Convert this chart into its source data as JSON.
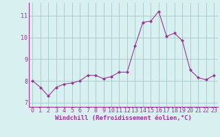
{
  "x": [
    0,
    1,
    2,
    3,
    4,
    5,
    6,
    7,
    8,
    9,
    10,
    11,
    12,
    13,
    14,
    15,
    16,
    17,
    18,
    19,
    20,
    21,
    22,
    23
  ],
  "y": [
    8.0,
    7.7,
    7.3,
    7.7,
    7.85,
    7.9,
    8.0,
    8.25,
    8.25,
    8.1,
    8.2,
    8.4,
    8.4,
    9.6,
    10.7,
    10.75,
    11.2,
    10.05,
    10.2,
    9.85,
    8.5,
    8.15,
    8.05,
    8.25
  ],
  "line_color": "#993399",
  "marker": "D",
  "marker_size": 2.5,
  "bg_color": "#d8f0f0",
  "grid_color": "#aacccc",
  "xlabel": "Windchill (Refroidissement éolien,°C)",
  "xlabel_color": "#993399",
  "tick_color": "#993399",
  "label_color": "#993399",
  "ylim": [
    6.8,
    11.6
  ],
  "xlim": [
    -0.5,
    23.5
  ],
  "yticks": [
    7,
    8,
    9,
    10,
    11
  ],
  "xticks": [
    0,
    1,
    2,
    3,
    4,
    5,
    6,
    7,
    8,
    9,
    10,
    11,
    12,
    13,
    14,
    15,
    16,
    17,
    18,
    19,
    20,
    21,
    22,
    23
  ],
  "figsize": [
    3.2,
    2.0
  ],
  "dpi": 100
}
